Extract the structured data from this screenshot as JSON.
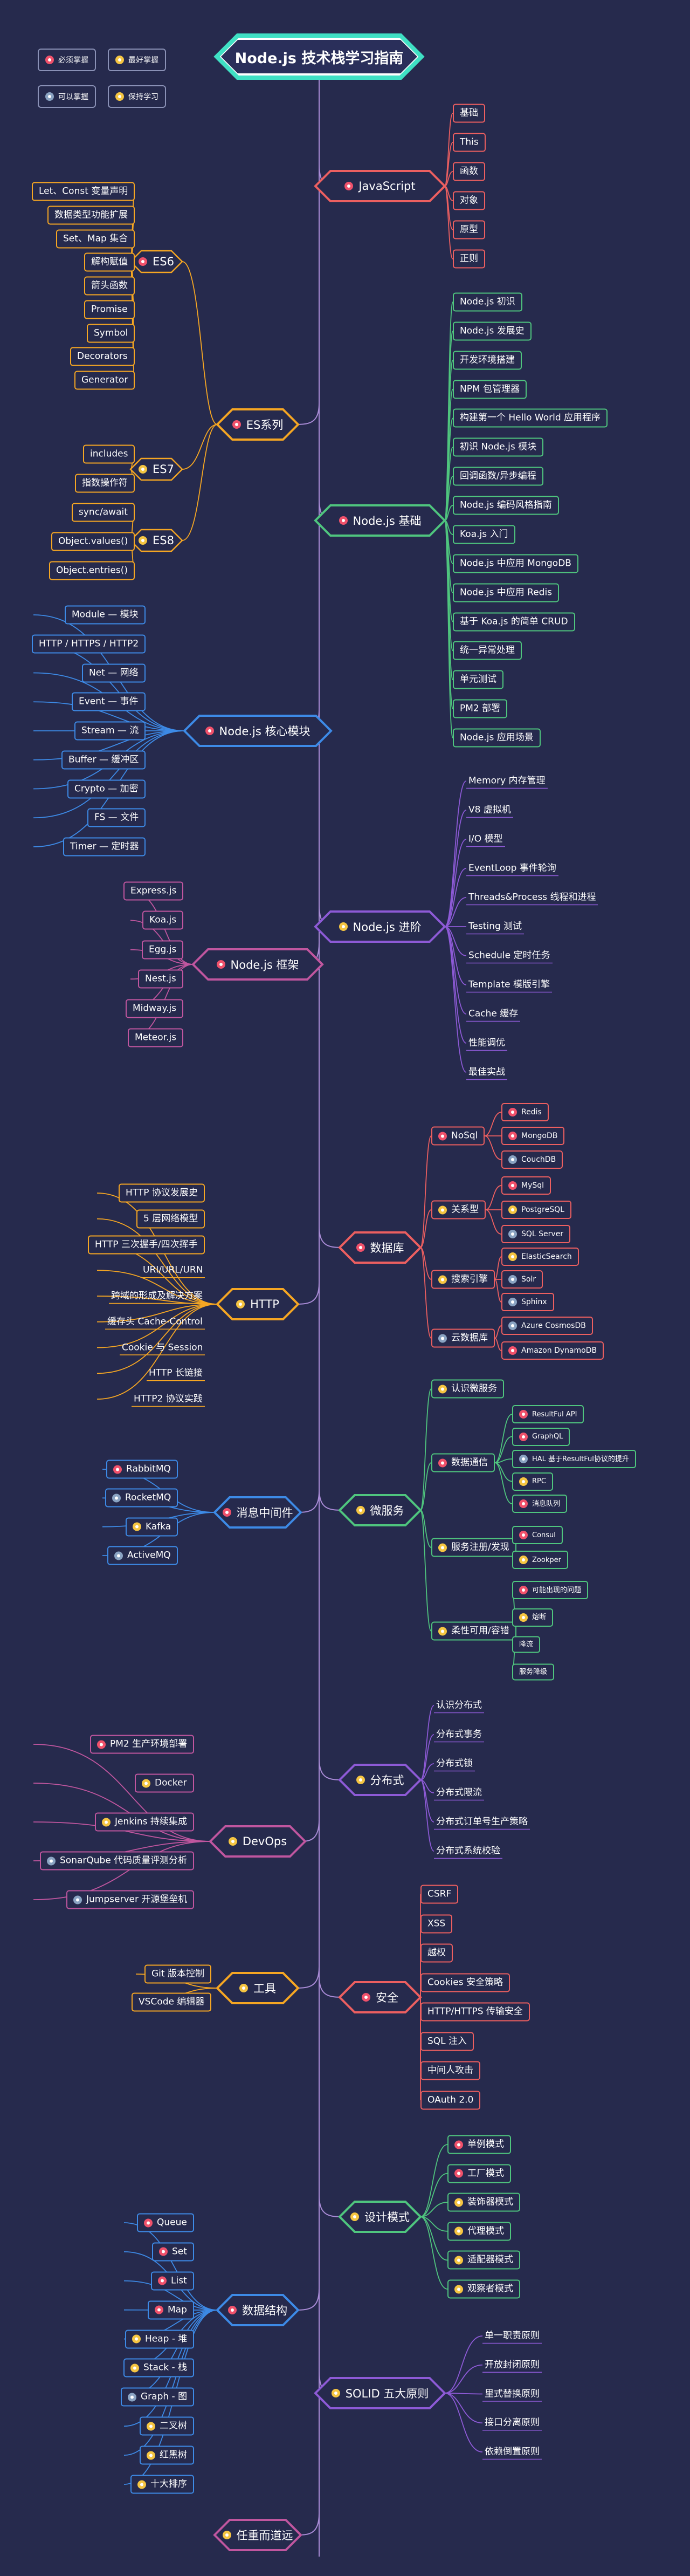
{
  "title": "Node.js 技术栈学习指南",
  "legend": {
    "must": "必须掌握",
    "best": "最好掌握",
    "know": "可以掌握",
    "keep": "保持学习"
  },
  "colors": {
    "background": "#262a4d",
    "spine": "#a98bd6",
    "must": "#f0516b",
    "best": "#f5c542",
    "know": "#8aa3c2",
    "javascript": "#ec5f60",
    "es": "#f5a623",
    "nodebasic": "#4fc57e",
    "core": "#3d8ae6",
    "advanced": "#8d5ad6",
    "framework": "#c0569f",
    "database": "#ec5f60",
    "http": "#f5a623",
    "micro": "#4fc57e",
    "mq": "#3d8ae6",
    "distributed": "#8d5ad6",
    "devops": "#c0569f",
    "security": "#ec5f60",
    "tools": "#f5a623",
    "design": "#4fc57e",
    "ds": "#3d8ae6",
    "solid": "#8d5ad6",
    "last": "#c0569f"
  },
  "branches": [
    {
      "id": "javascript",
      "label": "JavaScript",
      "level": "must",
      "children": [
        {
          "label": "基础"
        },
        {
          "label": "This"
        },
        {
          "label": "函数"
        },
        {
          "label": "对象"
        },
        {
          "label": "原型"
        },
        {
          "label": "正则"
        }
      ]
    },
    {
      "id": "es",
      "label": "ES系列",
      "level": "must",
      "children": [
        {
          "label": "ES6",
          "level": "must",
          "children": [
            {
              "label": "Let、Const 变量声明"
            },
            {
              "label": "数据类型功能扩展"
            },
            {
              "label": "Set、Map 集合"
            },
            {
              "label": "解构赋值"
            },
            {
              "label": "箭头函数"
            },
            {
              "label": "Promise"
            },
            {
              "label": "Symbol"
            },
            {
              "label": "Decorators"
            },
            {
              "label": "Generator"
            }
          ]
        },
        {
          "label": "ES7",
          "level": "best",
          "children": [
            {
              "label": "includes"
            },
            {
              "label": "指数操作符"
            }
          ]
        },
        {
          "label": "ES8",
          "level": "best",
          "children": [
            {
              "label": "sync/await"
            },
            {
              "label": "Object.values()"
            },
            {
              "label": "Object.entries()"
            }
          ]
        }
      ]
    },
    {
      "id": "nodebasic",
      "label": "Node.js 基础",
      "level": "must",
      "children": [
        {
          "label": "Node.js 初识"
        },
        {
          "label": "Node.js 发展史"
        },
        {
          "label": "开发环境搭建"
        },
        {
          "label": "NPM 包管理器"
        },
        {
          "label": "构建第一个 Hello World 应用程序"
        },
        {
          "label": "初识 Node.js 模块"
        },
        {
          "label": "回调函数/异步编程"
        },
        {
          "label": "Node.js 编码风格指南"
        },
        {
          "label": "Koa.js 入门"
        },
        {
          "label": "Node.js 中应用 MongoDB"
        },
        {
          "label": "Node.js 中应用 Redis"
        },
        {
          "label": "基于 Koa.js 的简单 CRUD"
        },
        {
          "label": "统一异常处理"
        },
        {
          "label": "单元测试"
        },
        {
          "label": "PM2 部署"
        },
        {
          "label": "Node.js 应用场景"
        }
      ]
    },
    {
      "id": "core",
      "label": "Node.js 核心模块",
      "level": "must",
      "children": [
        {
          "label": "Module — 模块"
        },
        {
          "label": "HTTP / HTTPS / HTTP2"
        },
        {
          "label": "Net — 网络"
        },
        {
          "label": "Event — 事件"
        },
        {
          "label": "Stream — 流"
        },
        {
          "label": "Buffer — 缓冲区"
        },
        {
          "label": "Crypto — 加密"
        },
        {
          "label": "FS — 文件"
        },
        {
          "label": "Timer — 定时器"
        }
      ]
    },
    {
      "id": "advanced",
      "label": "Node.js 进阶",
      "level": "best",
      "children": [
        {
          "label": "Memory 内存管理"
        },
        {
          "label": "V8 虚拟机"
        },
        {
          "label": "I/O 模型"
        },
        {
          "label": "EventLoop 事件轮询"
        },
        {
          "label": "Threads&Process 线程和进程"
        },
        {
          "label": "Testing 测试"
        },
        {
          "label": "Schedule 定时任务"
        },
        {
          "label": "Template 模版引擎"
        },
        {
          "label": "Cache 缓存"
        },
        {
          "label": "性能调优"
        },
        {
          "label": "最佳实战"
        }
      ]
    },
    {
      "id": "framework",
      "label": "Node.js 框架",
      "level": "must",
      "children": [
        {
          "label": "Express.js"
        },
        {
          "label": "Koa.js"
        },
        {
          "label": "Egg.js"
        },
        {
          "label": "Nest.js"
        },
        {
          "label": "Midway.js"
        },
        {
          "label": "Meteor.js"
        }
      ]
    },
    {
      "id": "database",
      "label": "数据库",
      "level": "must",
      "children": [
        {
          "label": "NoSql",
          "level": "must",
          "children": [
            {
              "label": "Redis",
              "level": "must"
            },
            {
              "label": "MongoDB",
              "level": "must"
            },
            {
              "label": "CouchDB",
              "level": "know"
            }
          ]
        },
        {
          "label": "关系型",
          "level": "best",
          "children": [
            {
              "label": "MySql",
              "level": "must"
            },
            {
              "label": "PostgreSQL",
              "level": "best"
            },
            {
              "label": "SQL Server",
              "level": "know"
            }
          ]
        },
        {
          "label": "搜索引擎",
          "level": "best",
          "children": [
            {
              "label": "ElasticSearch",
              "level": "best"
            },
            {
              "label": "Solr",
              "level": "know"
            },
            {
              "label": "Sphinx",
              "level": "know"
            }
          ]
        },
        {
          "label": "云数据库",
          "level": "know",
          "children": [
            {
              "label": "Azure CosmosDB",
              "level": "know"
            },
            {
              "label": "Amazon DynamoDB",
              "level": "must"
            }
          ]
        }
      ]
    },
    {
      "id": "http",
      "label": "HTTP",
      "level": "best",
      "children": [
        {
          "label": "HTTP 协议发展史"
        },
        {
          "label": "5 层网络模型"
        },
        {
          "label": "HTTP 三次握手/四次挥手"
        },
        {
          "label": "URI/URL/URN"
        },
        {
          "label": "跨域的形成及解决方案"
        },
        {
          "label": "缓存头 Cache-Control"
        },
        {
          "label": "Cookie 与 Session"
        },
        {
          "label": "HTTP 长链接"
        },
        {
          "label": "HTTP2 协议实践"
        }
      ]
    },
    {
      "id": "micro",
      "label": "微服务",
      "level": "best",
      "children": [
        {
          "label": "认识微服务",
          "level": "best",
          "children": []
        },
        {
          "label": "数据通信",
          "level": "must",
          "children": [
            {
              "label": "ResultFul API",
              "level": "must"
            },
            {
              "label": "GraphQL",
              "level": "must"
            },
            {
              "label": "HAL 基于ResultFul协议的提升",
              "level": "know"
            },
            {
              "label": "RPC",
              "level": "best"
            },
            {
              "label": "消息队列",
              "level": "must"
            }
          ]
        },
        {
          "label": "服务注册/发现",
          "level": "best",
          "children": [
            {
              "label": "Consul",
              "level": "must"
            },
            {
              "label": "Zookper",
              "level": "best"
            }
          ]
        },
        {
          "label": "柔性可用/容错",
          "level": "best",
          "children": [
            {
              "label": "可能出现的问题",
              "level": "must"
            },
            {
              "label": "熔断",
              "level": "best"
            },
            {
              "label": "降流"
            },
            {
              "label": "服务降级"
            }
          ]
        }
      ]
    },
    {
      "id": "mq",
      "label": "消息中间件",
      "level": "must",
      "children": [
        {
          "label": "RabbitMQ",
          "level": "must"
        },
        {
          "label": "RocketMQ",
          "level": "know"
        },
        {
          "label": "Kafka",
          "level": "best"
        },
        {
          "label": "ActiveMQ",
          "level": "know"
        }
      ]
    },
    {
      "id": "distributed",
      "label": "分布式",
      "level": "best",
      "children": [
        {
          "label": "认识分布式"
        },
        {
          "label": "分布式事务"
        },
        {
          "label": "分布式锁"
        },
        {
          "label": "分布式限流"
        },
        {
          "label": "分布式订单号生产策略"
        },
        {
          "label": "分布式系统校验"
        }
      ]
    },
    {
      "id": "devops",
      "label": "DevOps",
      "level": "best",
      "children": [
        {
          "label": "PM2 生产环境部署",
          "level": "must"
        },
        {
          "label": "Docker",
          "level": "best"
        },
        {
          "label": "Jenkins 持续集成",
          "level": "best"
        },
        {
          "label": "SonarQube 代码质量评测分析",
          "level": "know"
        },
        {
          "label": "Jumpserver 开源堡垒机",
          "level": "know"
        }
      ]
    },
    {
      "id": "security",
      "label": "安全",
      "level": "must",
      "children": [
        {
          "label": "CSRF"
        },
        {
          "label": "XSS"
        },
        {
          "label": "越权"
        },
        {
          "label": "Cookies 安全策略"
        },
        {
          "label": "HTTP/HTTPS 传输安全"
        },
        {
          "label": "SQL 注入"
        },
        {
          "label": "中间人攻击"
        },
        {
          "label": "OAuth 2.0"
        }
      ]
    },
    {
      "id": "tools",
      "label": "工具",
      "level": "best",
      "children": [
        {
          "label": "Git 版本控制"
        },
        {
          "label": "VSCode 编辑器"
        }
      ]
    },
    {
      "id": "design",
      "label": "设计模式",
      "level": "best",
      "children": [
        {
          "label": "单例模式",
          "level": "must"
        },
        {
          "label": "工厂模式",
          "level": "must"
        },
        {
          "label": "装饰器模式",
          "level": "best"
        },
        {
          "label": "代理模式",
          "level": "best"
        },
        {
          "label": "适配器模式",
          "level": "best"
        },
        {
          "label": "观察者模式",
          "level": "best"
        }
      ]
    },
    {
      "id": "ds",
      "label": "数据结构",
      "level": "must",
      "children": [
        {
          "label": "Queue",
          "level": "must"
        },
        {
          "label": "Set",
          "level": "must"
        },
        {
          "label": "List",
          "level": "must"
        },
        {
          "label": "Map",
          "level": "must"
        },
        {
          "label": "Heap - 堆",
          "level": "best"
        },
        {
          "label": "Stack - 栈",
          "level": "best"
        },
        {
          "label": "Graph - 图",
          "level": "know"
        },
        {
          "label": "二叉树",
          "level": "best"
        },
        {
          "label": "红黑树",
          "level": "best"
        },
        {
          "label": "十大排序",
          "level": "best"
        }
      ]
    },
    {
      "id": "solid",
      "label": "SOLID 五大原则",
      "level": "best",
      "children": [
        {
          "label": "单一职责原则"
        },
        {
          "label": "开放封闭原则"
        },
        {
          "label": "里式替换原则"
        },
        {
          "label": "接口分离原则"
        },
        {
          "label": "依赖倒置原则"
        }
      ]
    },
    {
      "id": "last",
      "label": "任重而道远",
      "level": "best",
      "children": []
    }
  ]
}
